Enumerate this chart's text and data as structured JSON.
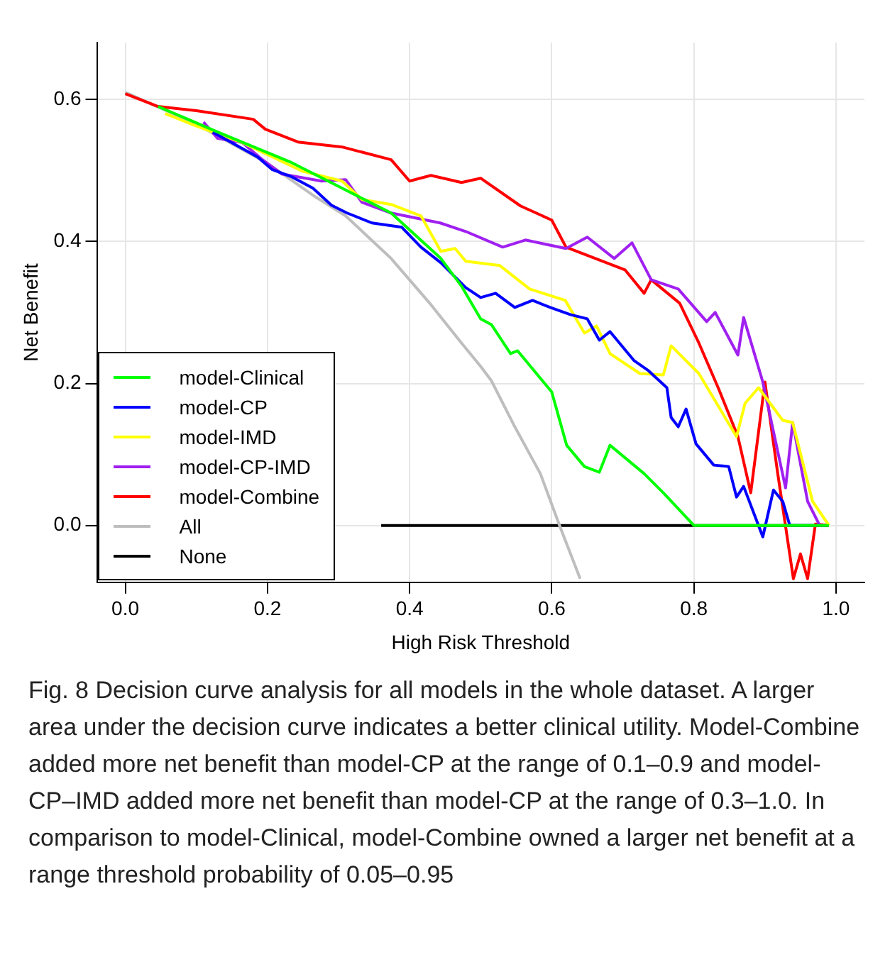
{
  "chart_data": {
    "type": "line",
    "xlabel": "High Risk Threshold",
    "ylabel": "Net Benefit",
    "xlim": [
      -0.04,
      1.04
    ],
    "ylim": [
      -0.08,
      0.68
    ],
    "xticks": [
      {
        "value": 0,
        "label": "0.0"
      },
      {
        "value": 0.2,
        "label": "0.2"
      },
      {
        "value": 0.4,
        "label": "0.4"
      },
      {
        "value": 0.6,
        "label": "0.6"
      },
      {
        "value": 0.8,
        "label": "0.8"
      },
      {
        "value": 1,
        "label": "1.0"
      }
    ],
    "yticks": [
      {
        "value": 0,
        "label": "0.0"
      },
      {
        "value": 0.2,
        "label": "0.2"
      },
      {
        "value": 0.4,
        "label": "0.4"
      },
      {
        "value": 0.6,
        "label": "0.6"
      }
    ],
    "grid": true,
    "legend": "bottom left",
    "marker": "none",
    "line_style": "solid",
    "series": [
      {
        "name": "model-Clinical",
        "color": "#00ff00",
        "x": [
          0.046,
          0.13,
          0.234,
          0.305,
          0.374,
          0.444,
          0.473,
          0.5,
          0.515,
          0.542,
          0.552,
          0.6,
          0.621,
          0.646,
          0.667,
          0.682,
          0.73,
          0.757,
          0.8,
          0.99
        ],
        "values": [
          0.59,
          0.554,
          0.511,
          0.475,
          0.44,
          0.376,
          0.337,
          0.291,
          0.283,
          0.242,
          0.246,
          0.188,
          0.113,
          0.083,
          0.075,
          0.113,
          0.073,
          0.046,
          0,
          0
        ]
      },
      {
        "name": "model-CP",
        "color": "#0000ff",
        "x": [
          0.123,
          0.186,
          0.207,
          0.234,
          0.264,
          0.29,
          0.312,
          0.347,
          0.389,
          0.416,
          0.444,
          0.479,
          0.5,
          0.521,
          0.548,
          0.573,
          0.598,
          0.626,
          0.65,
          0.667,
          0.682,
          0.716,
          0.736,
          0.762,
          0.768,
          0.778,
          0.789,
          0.803,
          0.828,
          0.849,
          0.86,
          0.87,
          0.897,
          0.912,
          0.925,
          0.935,
          0.987
        ],
        "values": [
          0.554,
          0.519,
          0.501,
          0.491,
          0.475,
          0.451,
          0.44,
          0.426,
          0.42,
          0.392,
          0.37,
          0.335,
          0.321,
          0.327,
          0.307,
          0.317,
          0.307,
          0.297,
          0.291,
          0.261,
          0.273,
          0.232,
          0.218,
          0.194,
          0.152,
          0.139,
          0.164,
          0.115,
          0.085,
          0.083,
          0.04,
          0.055,
          -0.016,
          0.05,
          0.034,
          0,
          0
        ]
      },
      {
        "name": "model-IMD",
        "color": "#ffff00",
        "x": [
          0.056,
          0.096,
          0.123,
          0.165,
          0.249,
          0.305,
          0.333,
          0.374,
          0.416,
          0.444,
          0.464,
          0.479,
          0.527,
          0.569,
          0.619,
          0.646,
          0.663,
          0.682,
          0.724,
          0.757,
          0.768,
          0.807,
          0.86,
          0.872,
          0.891,
          0.925,
          0.939,
          0.967,
          0.99
        ],
        "values": [
          0.58,
          0.564,
          0.554,
          0.539,
          0.499,
          0.485,
          0.459,
          0.452,
          0.436,
          0.386,
          0.39,
          0.372,
          0.366,
          0.333,
          0.317,
          0.271,
          0.281,
          0.242,
          0.214,
          0.212,
          0.253,
          0.214,
          0.125,
          0.172,
          0.194,
          0.148,
          0.145,
          0.034,
          0
        ]
      },
      {
        "name": "model-CP-IMD",
        "color": "#a020f0",
        "x": [
          0.11,
          0.13,
          0.165,
          0.193,
          0.22,
          0.276,
          0.31,
          0.333,
          0.374,
          0.443,
          0.479,
          0.531,
          0.563,
          0.62,
          0.65,
          0.688,
          0.713,
          0.74,
          0.778,
          0.818,
          0.83,
          0.862,
          0.87,
          0.897,
          0.929,
          0.939,
          0.96,
          0.977
        ],
        "values": [
          0.568,
          0.545,
          0.539,
          0.515,
          0.495,
          0.485,
          0.487,
          0.455,
          0.44,
          0.426,
          0.414,
          0.392,
          0.402,
          0.39,
          0.406,
          0.376,
          0.398,
          0.346,
          0.333,
          0.287,
          0.3,
          0.24,
          0.293,
          0.202,
          0.053,
          0.145,
          0.034,
          0
        ]
      },
      {
        "name": "model-Combine",
        "color": "#ff0000",
        "x": [
          0,
          0.046,
          0.1,
          0.18,
          0.197,
          0.243,
          0.305,
          0.374,
          0.4,
          0.43,
          0.473,
          0.5,
          0.556,
          0.6,
          0.62,
          0.703,
          0.73,
          0.74,
          0.78,
          0.807,
          0.835,
          0.862,
          0.88,
          0.9,
          0.918,
          0.94,
          0.95,
          0.96,
          0.971,
          0.99
        ],
        "values": [
          0.608,
          0.59,
          0.584,
          0.572,
          0.558,
          0.54,
          0.533,
          0.515,
          0.485,
          0.493,
          0.483,
          0.489,
          0.45,
          0.43,
          0.392,
          0.36,
          0.327,
          0.346,
          0.313,
          0.257,
          0.192,
          0.125,
          0.046,
          0.202,
          0.073,
          -0.075,
          -0.04,
          -0.075,
          0.002,
          0
        ]
      },
      {
        "name": "All",
        "color": "#bebebe",
        "x": [
          0,
          0.1,
          0.2,
          0.264,
          0.31,
          0.374,
          0.43,
          0.473,
          0.5,
          0.515,
          0.548,
          0.584,
          0.611,
          0.64
        ],
        "values": [
          0.61,
          0.565,
          0.51,
          0.465,
          0.436,
          0.376,
          0.311,
          0.257,
          0.224,
          0.204,
          0.139,
          0.073,
          0,
          -0.075
        ]
      },
      {
        "name": "None",
        "color": "#000000",
        "x": [
          0.36,
          0.99
        ],
        "values": [
          0,
          0
        ]
      }
    ],
    "annotations": [
      "Fig. 8 Decision curve analysis for all models in the whole dataset. A larger area under the decision curve indicates a better clinical utility. Model-Combine added more net benefit than model-CP at the range of 0.1–0.9 and model-CP–IMD added more net benefit than model-CP at the range of 0.3–1.0. In comparison to model-Clinical, model-Combine owned a larger net benefit at a range threshold probability of 0.05–0.95"
    ]
  }
}
